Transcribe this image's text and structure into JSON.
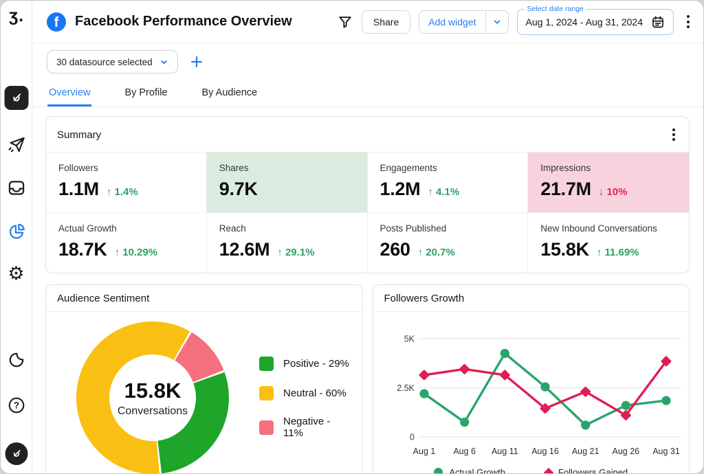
{
  "app": {
    "logo_text": "ʒ."
  },
  "sidebar": {
    "icons": [
      {
        "name": "ai-writer-icon"
      },
      {
        "name": "publish-plane-icon"
      },
      {
        "name": "inbox-icon"
      },
      {
        "name": "analytics-pie-icon",
        "active": true
      },
      {
        "name": "settings-gear-icon"
      },
      {
        "name": "dark-mode-moon-icon"
      },
      {
        "name": "help-icon"
      },
      {
        "name": "profile-avatar-icon"
      }
    ],
    "active_color": "#2380f2"
  },
  "header": {
    "title": "Facebook Performance Overview",
    "share_label": "Share",
    "add_widget_label": "Add widget",
    "date_label": "Select date range",
    "date_value": "Aug 1, 2024 - Aug 31, 2024",
    "icons": [
      "facebook-icon",
      "filter-icon",
      "chevron-down-icon",
      "calendar-icon",
      "kebab-menu-icon"
    ]
  },
  "datasource_bar": {
    "selected_label": "30 datasource selected",
    "icons": [
      "chevron-down-icon",
      "plus-icon"
    ]
  },
  "tabs": [
    {
      "label": "Overview",
      "active": true
    },
    {
      "label": "By Profile",
      "active": false
    },
    {
      "label": "By Audience",
      "active": false
    }
  ],
  "summary": {
    "title": "Summary",
    "colors": {
      "delta_up": "#2f9e68",
      "delta_down": "#e0245a",
      "highlight_green": "#d9ecdf",
      "highlight_pink": "#f8d3dd"
    },
    "metrics": [
      {
        "label": "Followers",
        "value": "1.1M",
        "direction": "up",
        "delta": "1.4%",
        "highlight": null
      },
      {
        "label": "Shares",
        "value": "9.7K",
        "direction": null,
        "delta": null,
        "highlight": "#d9ecdf"
      },
      {
        "label": "Engagements",
        "value": "1.2M",
        "direction": "up",
        "delta": "4.1%",
        "highlight": null
      },
      {
        "label": "Impressions",
        "value": "21.7M",
        "direction": "down",
        "delta": "10%",
        "highlight": "#f8d3dd"
      },
      {
        "label": "Actual Growth",
        "value": "18.7K",
        "direction": "up",
        "delta": "10.29%",
        "highlight": null
      },
      {
        "label": "Reach",
        "value": "12.6M",
        "direction": "up",
        "delta": "29.1%",
        "highlight": null
      },
      {
        "label": "Posts Published",
        "value": "260",
        "direction": "up",
        "delta": "20.7%",
        "highlight": null
      },
      {
        "label": "New Inbound Conversations",
        "value": "15.8K",
        "direction": "up",
        "delta": "11.69%",
        "highlight": null
      }
    ]
  },
  "chart_data": [
    {
      "type": "pie",
      "title": "Audience Sentiment",
      "center_value": "15.8K",
      "center_label": "Conversations",
      "segments": [
        {
          "label": "Positive",
          "pct": 29,
          "color": "#1ea52a"
        },
        {
          "label": "Neutral",
          "pct": 60,
          "color": "#f9c013"
        },
        {
          "label": "Negative",
          "pct": 11,
          "color": "#f4707d"
        }
      ],
      "draw_order": [
        2,
        0,
        1
      ],
      "rotation_deg": 30,
      "donut_hole_pct": 56,
      "legend_position": "right",
      "legend_format": "{label} - {pct}%"
    },
    {
      "type": "line",
      "title": "Followers Growth",
      "x": [
        "Aug 1",
        "Aug 6",
        "Aug 11",
        "Aug 16",
        "Aug 21",
        "Aug 26",
        "Aug 31"
      ],
      "ylim": [
        0,
        5000
      ],
      "yticks": [
        {
          "v": 0,
          "label": "0"
        },
        {
          "v": 2500,
          "label": "2.5K"
        },
        {
          "v": 5000,
          "label": "5K"
        }
      ],
      "grid": "horizontal",
      "series": [
        {
          "name": "Actual Growth",
          "color": "#2aa46b",
          "marker": "circle",
          "values": [
            2200,
            750,
            4250,
            2550,
            600,
            1600,
            1850
          ]
        },
        {
          "name": "Followers Gained",
          "color": "#e01e52",
          "marker": "diamond",
          "values": [
            3150,
            3450,
            3150,
            1450,
            2300,
            1100,
            3850
          ]
        }
      ],
      "legend_position": "bottom"
    }
  ]
}
